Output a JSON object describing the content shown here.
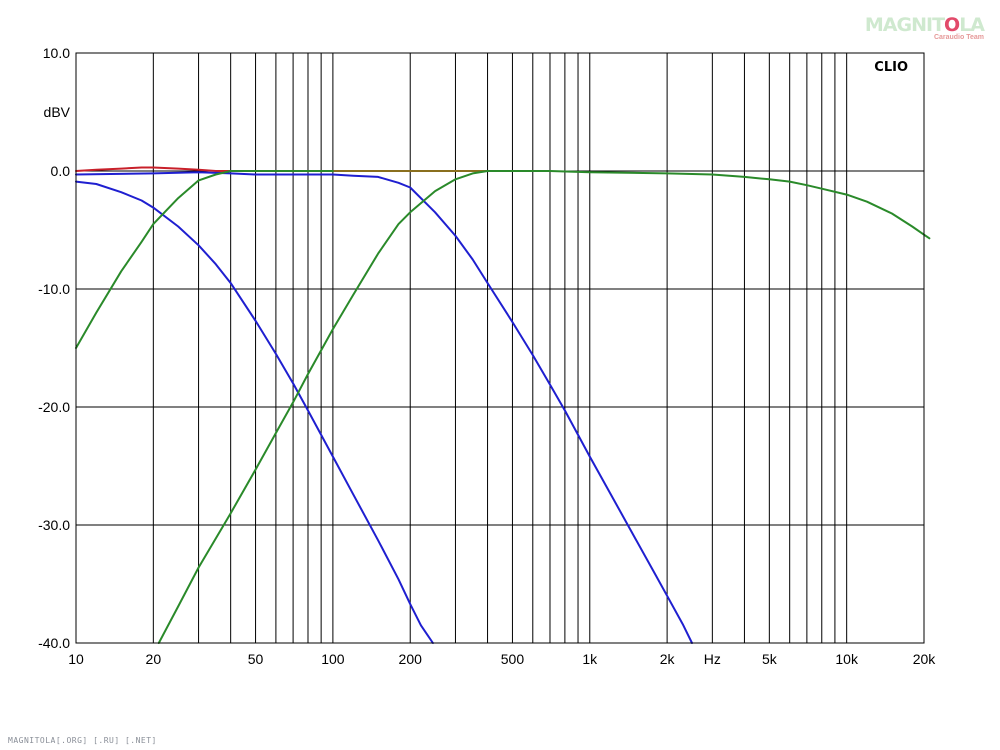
{
  "chart_data": {
    "type": "line",
    "y_unit_label": "dBV",
    "x_unit_label": "Hz",
    "corner_label": "CLIO",
    "xscale": "log",
    "xlim": [
      10,
      20000
    ],
    "ylim": [
      -40,
      10
    ],
    "grid": true,
    "y_ticks": [
      {
        "value": 10,
        "label": "10.0"
      },
      {
        "value": 0,
        "label": "0.0"
      },
      {
        "value": -10,
        "label": "-10.0"
      },
      {
        "value": -20,
        "label": "-20.0"
      },
      {
        "value": -30,
        "label": "-30.0"
      },
      {
        "value": -40,
        "label": "-40.0"
      }
    ],
    "x_ticks": [
      {
        "value": 10,
        "label": "10"
      },
      {
        "value": 20,
        "label": "20"
      },
      {
        "value": 50,
        "label": "50"
      },
      {
        "value": 100,
        "label": "100"
      },
      {
        "value": 200,
        "label": "200"
      },
      {
        "value": 500,
        "label": "500"
      },
      {
        "value": 1000,
        "label": "1k"
      },
      {
        "value": 2000,
        "label": "2k"
      },
      {
        "value": 5000,
        "label": "5k"
      },
      {
        "value": 10000,
        "label": "10k"
      },
      {
        "value": 20000,
        "label": "20k"
      }
    ],
    "series": [
      {
        "color": "#c8202a",
        "points": [
          [
            10,
            0.0
          ],
          [
            12,
            0.1
          ],
          [
            15,
            0.2
          ],
          [
            18,
            0.3
          ],
          [
            20,
            0.3
          ],
          [
            25,
            0.2
          ],
          [
            30,
            0.1
          ],
          [
            35,
            0.0
          ],
          [
            40,
            0.0
          ]
        ]
      },
      {
        "color": "#8a6f1e",
        "points": [
          [
            40,
            0.0
          ],
          [
            100,
            0.0
          ],
          [
            200,
            0.0
          ],
          [
            300,
            0.0
          ],
          [
            400,
            0.0
          ]
        ]
      },
      {
        "color": "#1f1fd0",
        "points": [
          [
            10,
            -0.3
          ],
          [
            20,
            -0.2
          ],
          [
            30,
            -0.1
          ],
          [
            40,
            -0.2
          ],
          [
            50,
            -0.3
          ],
          [
            70,
            -0.3
          ],
          [
            100,
            -0.3
          ],
          [
            120,
            -0.4
          ],
          [
            150,
            -0.5
          ],
          [
            180,
            -1.0
          ],
          [
            200,
            -1.4
          ],
          [
            250,
            -3.5
          ],
          [
            300,
            -5.5
          ],
          [
            350,
            -7.5
          ],
          [
            400,
            -9.5
          ],
          [
            500,
            -12.8
          ],
          [
            600,
            -15.6
          ],
          [
            700,
            -18.1
          ],
          [
            800,
            -20.3
          ],
          [
            1000,
            -24.2
          ],
          [
            1200,
            -27.3
          ],
          [
            1500,
            -31.1
          ],
          [
            1800,
            -34.2
          ],
          [
            2000,
            -36.0
          ],
          [
            2300,
            -38.4
          ],
          [
            2500,
            -40.0
          ]
        ]
      },
      {
        "color": "#1f1fd0",
        "points": [
          [
            10,
            -0.9
          ],
          [
            12,
            -1.1
          ],
          [
            15,
            -1.8
          ],
          [
            18,
            -2.5
          ],
          [
            20,
            -3.1
          ],
          [
            25,
            -4.7
          ],
          [
            30,
            -6.3
          ],
          [
            35,
            -7.9
          ],
          [
            40,
            -9.5
          ],
          [
            50,
            -12.7
          ],
          [
            60,
            -15.5
          ],
          [
            70,
            -18.0
          ],
          [
            80,
            -20.3
          ],
          [
            100,
            -24.2
          ],
          [
            120,
            -27.4
          ],
          [
            150,
            -31.3
          ],
          [
            180,
            -34.6
          ],
          [
            200,
            -36.7
          ],
          [
            220,
            -38.5
          ],
          [
            245,
            -40.0
          ]
        ]
      },
      {
        "color": "#2a8a2a",
        "points": [
          [
            21,
            -40.0
          ],
          [
            25,
            -36.9
          ],
          [
            30,
            -33.6
          ],
          [
            40,
            -29.0
          ],
          [
            50,
            -25.3
          ],
          [
            60,
            -22.2
          ],
          [
            70,
            -19.6
          ],
          [
            80,
            -17.2
          ],
          [
            100,
            -13.4
          ],
          [
            120,
            -10.5
          ],
          [
            150,
            -7.0
          ],
          [
            180,
            -4.5
          ],
          [
            200,
            -3.5
          ],
          [
            250,
            -1.7
          ],
          [
            300,
            -0.7
          ],
          [
            350,
            -0.2
          ],
          [
            400,
            0.0
          ],
          [
            500,
            0.0
          ],
          [
            700,
            0.0
          ],
          [
            1000,
            -0.1
          ],
          [
            2000,
            -0.2
          ],
          [
            3000,
            -0.3
          ],
          [
            4000,
            -0.5
          ],
          [
            5000,
            -0.7
          ],
          [
            6000,
            -0.9
          ],
          [
            7000,
            -1.2
          ],
          [
            8000,
            -1.5
          ],
          [
            10000,
            -2.0
          ],
          [
            12000,
            -2.6
          ],
          [
            15000,
            -3.6
          ],
          [
            18000,
            -4.7
          ],
          [
            20000,
            -5.4
          ],
          [
            21000,
            -5.7
          ]
        ]
      },
      {
        "color": "#2a8a2a",
        "points": [
          [
            10,
            -15.0
          ],
          [
            12,
            -12.0
          ],
          [
            15,
            -8.5
          ],
          [
            18,
            -6.0
          ],
          [
            20,
            -4.5
          ],
          [
            25,
            -2.3
          ],
          [
            30,
            -0.8
          ],
          [
            35,
            -0.3
          ],
          [
            40,
            0.0
          ],
          [
            60,
            0.0
          ],
          [
            100,
            0.0
          ]
        ]
      }
    ]
  },
  "watermark": {
    "logo_before": "MAGNIT",
    "logo_o": "O",
    "logo_after": "LA",
    "logo_sub": "Caraudio Team",
    "footer": "MAGNITOLA[.ORG] [.RU] [.NET]"
  }
}
